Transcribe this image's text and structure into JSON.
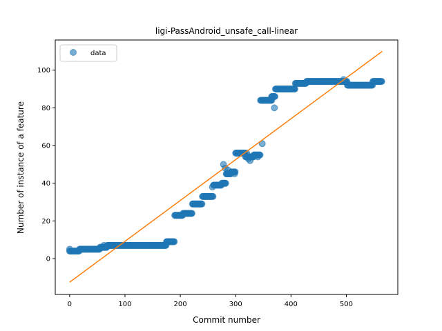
{
  "chart_data": {
    "type": "scatter",
    "title": "ligi-PassAndroid_unsafe_call-linear",
    "xlabel": "Commit number",
    "ylabel": "Number of instance of a feature",
    "xlim": [
      -26,
      593
    ],
    "ylim": [
      -19,
      116
    ],
    "xticks": [
      0,
      100,
      200,
      300,
      400,
      500
    ],
    "yticks": [
      0,
      20,
      40,
      60,
      80,
      100
    ],
    "legend": {
      "entries": [
        "data"
      ],
      "placement": "upper-left"
    },
    "grid": false,
    "colors": {
      "data": "#1f77b4",
      "fit": "#ff7f0e"
    },
    "series": [
      {
        "name": "data",
        "kind": "scatter",
        "segments": [
          {
            "x_start": 0,
            "x_end": 18,
            "y": 4
          },
          {
            "x_start": 18,
            "x_end": 55,
            "y": 5
          },
          {
            "x_start": 55,
            "x_end": 68,
            "y": 6
          },
          {
            "x_start": 68,
            "x_end": 175,
            "y": 7
          },
          {
            "x_start": 175,
            "x_end": 190,
            "y": 9
          },
          {
            "x_start": 190,
            "x_end": 205,
            "y": 23
          },
          {
            "x_start": 205,
            "x_end": 222,
            "y": 24
          },
          {
            "x_start": 222,
            "x_end": 240,
            "y": 29
          },
          {
            "x_start": 240,
            "x_end": 260,
            "y": 33
          },
          {
            "x_start": 260,
            "x_end": 275,
            "y": 39
          },
          {
            "x_start": 275,
            "x_end": 283,
            "y": 40
          },
          {
            "x_start": 283,
            "x_end": 292,
            "y": 45
          },
          {
            "x_start": 292,
            "x_end": 300,
            "y": 46
          },
          {
            "x_start": 300,
            "x_end": 318,
            "y": 56
          },
          {
            "x_start": 318,
            "x_end": 333,
            "y": 54
          },
          {
            "x_start": 333,
            "x_end": 345,
            "y": 55
          },
          {
            "x_start": 345,
            "x_end": 365,
            "y": 84
          },
          {
            "x_start": 365,
            "x_end": 372,
            "y": 86
          },
          {
            "x_start": 372,
            "x_end": 408,
            "y": 90
          },
          {
            "x_start": 408,
            "x_end": 428,
            "y": 93
          },
          {
            "x_start": 428,
            "x_end": 502,
            "y": 94
          },
          {
            "x_start": 502,
            "x_end": 548,
            "y": 92
          },
          {
            "x_start": 548,
            "x_end": 565,
            "y": 94
          }
        ],
        "outliers": [
          {
            "x": 0,
            "y": 5
          },
          {
            "x": 62,
            "y": 7
          },
          {
            "x": 258,
            "y": 38
          },
          {
            "x": 278,
            "y": 50
          },
          {
            "x": 281,
            "y": 48
          },
          {
            "x": 286,
            "y": 47
          },
          {
            "x": 298,
            "y": 45
          },
          {
            "x": 320,
            "y": 56
          },
          {
            "x": 323,
            "y": 53
          },
          {
            "x": 326,
            "y": 52
          },
          {
            "x": 340,
            "y": 54
          },
          {
            "x": 348,
            "y": 61
          },
          {
            "x": 365,
            "y": 84
          },
          {
            "x": 370,
            "y": 80
          },
          {
            "x": 495,
            "y": 95
          }
        ]
      },
      {
        "name": "",
        "kind": "line",
        "x": [
          0,
          565
        ],
        "y": [
          -12.5,
          110
        ]
      }
    ]
  }
}
